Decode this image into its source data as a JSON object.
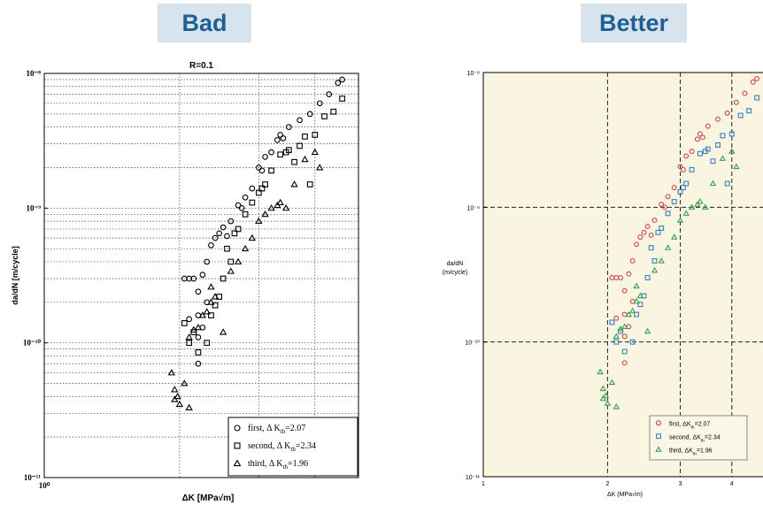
{
  "headings": {
    "bad": "Bad",
    "better": "Better"
  },
  "chart_data": [
    {
      "panel": "Bad",
      "type": "scatter",
      "title": "R=0.1",
      "xlabel": "ΔK [MPa√m]",
      "ylabel": "da/dN [m/cycle]",
      "x_scale": "log",
      "y_scale": "log",
      "xlim": [
        1,
        5
      ],
      "ylim": [
        1e-11,
        1e-08
      ],
      "y_tick_labels": [
        "10⁻⁸",
        "10⁻⁹",
        "10⁻¹⁰",
        "10⁻¹¹"
      ],
      "x_tick_labels": [
        "10⁰"
      ],
      "grid": "dotted, major and minor",
      "legend_position": "bottom-right",
      "series": [
        {
          "name": "first, Δ K_th=2.07",
          "label_parts": [
            "first, Δ K",
            "th",
            "=2.07"
          ],
          "marker": "circle",
          "points": [
            [
              2.05,
              3e-10
            ],
            [
              2.1,
              3e-10
            ],
            [
              2.15,
              3e-10
            ],
            [
              2.2,
              2.4e-10
            ],
            [
              2.25,
              3.2e-10
            ],
            [
              2.3,
              4e-10
            ],
            [
              2.35,
              5.3e-10
            ],
            [
              2.4,
              6e-10
            ],
            [
              2.45,
              6.5e-10
            ],
            [
              2.5,
              7.2e-10
            ],
            [
              2.6,
              8e-10
            ],
            [
              2.7,
              1.05e-09
            ],
            [
              2.8,
              1.2e-09
            ],
            [
              2.9,
              1.4e-09
            ],
            [
              3.0,
              2e-09
            ],
            [
              3.1,
              2.4e-09
            ],
            [
              3.2,
              2.6e-09
            ],
            [
              3.3,
              3.2e-09
            ],
            [
              3.35,
              3.5e-09
            ],
            [
              3.5,
              4e-09
            ],
            [
              3.7,
              4.5e-09
            ],
            [
              3.9,
              5e-09
            ],
            [
              4.1,
              6e-09
            ],
            [
              4.3,
              7e-09
            ],
            [
              4.5,
              8.5e-09
            ],
            [
              4.6,
              9e-09
            ],
            [
              2.2,
              1.1e-10
            ],
            [
              2.25,
              1.3e-10
            ],
            [
              2.2,
              1.6e-10
            ],
            [
              2.3,
              2e-10
            ],
            [
              2.1,
              1.5e-10
            ],
            [
              2.2,
              7e-11
            ],
            [
              2.55,
              6.2e-10
            ],
            [
              2.75,
              1e-09
            ],
            [
              3.05,
              1.9e-09
            ],
            [
              3.4,
              3.3e-09
            ]
          ]
        },
        {
          "name": "second, Δ K_th=2.34",
          "label_parts": [
            "second, Δ K",
            "th",
            "=2.34"
          ],
          "marker": "square",
          "points": [
            [
              2.05,
              1.4e-10
            ],
            [
              2.1,
              1e-10
            ],
            [
              2.15,
              1.2e-10
            ],
            [
              2.2,
              8.5e-11
            ],
            [
              2.3,
              1e-10
            ],
            [
              2.4,
              1.9e-10
            ],
            [
              2.45,
              2.2e-10
            ],
            [
              2.5,
              3e-10
            ],
            [
              2.6,
              4e-10
            ],
            [
              2.65,
              6.5e-10
            ],
            [
              2.7,
              7e-10
            ],
            [
              2.8,
              9e-10
            ],
            [
              2.9,
              1.1e-09
            ],
            [
              3.0,
              1.3e-09
            ],
            [
              3.1,
              1.5e-09
            ],
            [
              3.2,
              1.9e-09
            ],
            [
              3.35,
              2.5e-09
            ],
            [
              3.5,
              2.7e-09
            ],
            [
              3.6,
              2.2e-09
            ],
            [
              3.7,
              2.9e-09
            ],
            [
              3.8,
              3.4e-09
            ],
            [
              4.0,
              3.5e-09
            ],
            [
              4.2,
              4.8e-09
            ],
            [
              4.4,
              5.2e-09
            ],
            [
              4.6,
              6.5e-09
            ],
            [
              3.9,
              1.5e-09
            ],
            [
              2.35,
              1.6e-10
            ],
            [
              2.55,
              5e-10
            ],
            [
              3.05,
              1.4e-09
            ],
            [
              3.45,
              2.6e-09
            ]
          ]
        },
        {
          "name": "third, Δ K_th=1.96",
          "label_parts": [
            "third, Δ K",
            "th",
            "=1.96"
          ],
          "marker": "triangle",
          "points": [
            [
              1.92,
              6e-11
            ],
            [
              1.95,
              4.5e-11
            ],
            [
              1.98,
              4e-11
            ],
            [
              2.0,
              3.5e-11
            ],
            [
              1.95,
              3.8e-11
            ],
            [
              2.05,
              5e-11
            ],
            [
              2.1,
              1.1e-10
            ],
            [
              2.15,
              1.25e-10
            ],
            [
              2.2,
              1.3e-10
            ],
            [
              2.25,
              1.6e-10
            ],
            [
              2.35,
              2e-10
            ],
            [
              2.4,
              2.2e-10
            ],
            [
              2.35,
              2.6e-10
            ],
            [
              2.5,
              1.2e-10
            ],
            [
              2.6,
              3.4e-10
            ],
            [
              2.7,
              4e-10
            ],
            [
              2.8,
              5e-10
            ],
            [
              2.9,
              6e-10
            ],
            [
              3.0,
              8e-10
            ],
            [
              3.1,
              9e-10
            ],
            [
              3.2,
              1e-09
            ],
            [
              3.35,
              1.1e-09
            ],
            [
              3.45,
              1e-09
            ],
            [
              3.6,
              1.5e-09
            ],
            [
              3.8,
              2.3e-09
            ],
            [
              4.0,
              2.6e-09
            ],
            [
              4.1,
              2e-09
            ],
            [
              2.1,
              3.3e-11
            ],
            [
              2.3,
              1.7e-10
            ],
            [
              3.3,
              1.05e-09
            ]
          ]
        }
      ]
    },
    {
      "panel": "Better",
      "type": "scatter",
      "title": "",
      "xlabel": "ΔK (MPa√m)",
      "ylabel_lines": [
        "da/dN",
        "(m/cycle)"
      ],
      "x_scale": "log",
      "y_scale": "log",
      "xlim": [
        1,
        5
      ],
      "ylim": [
        1e-11,
        1e-08
      ],
      "y_tick_labels": [
        "10⁻⁸",
        "10⁻⁹",
        "10⁻¹⁰",
        "10⁻¹¹"
      ],
      "x_tick_labels": [
        "1",
        "2",
        "3",
        "4"
      ],
      "x_tick_values": [
        1,
        2,
        3,
        4
      ],
      "grid": "dashed, major only",
      "background": "#faf5e0",
      "legend_position": "bottom-right",
      "series": [
        {
          "name": "first, ΔK_th=2.07",
          "label_parts": [
            "first, ΔK",
            "th",
            "=2.07"
          ],
          "marker": "circle",
          "color": "#d0404f",
          "same_points_as": "Bad.first"
        },
        {
          "name": "second, ΔK_th=2.34",
          "label_parts": [
            "second, ΔK",
            "th",
            "=2.34"
          ],
          "marker": "square",
          "color": "#3a7fc0",
          "same_points_as": "Bad.second"
        },
        {
          "name": "third, ΔK_th=1.96",
          "label_parts": [
            "third, ΔK",
            "th",
            "=1.96"
          ],
          "marker": "triangle",
          "color": "#3aa050",
          "same_points_as": "Bad.third"
        }
      ]
    }
  ]
}
